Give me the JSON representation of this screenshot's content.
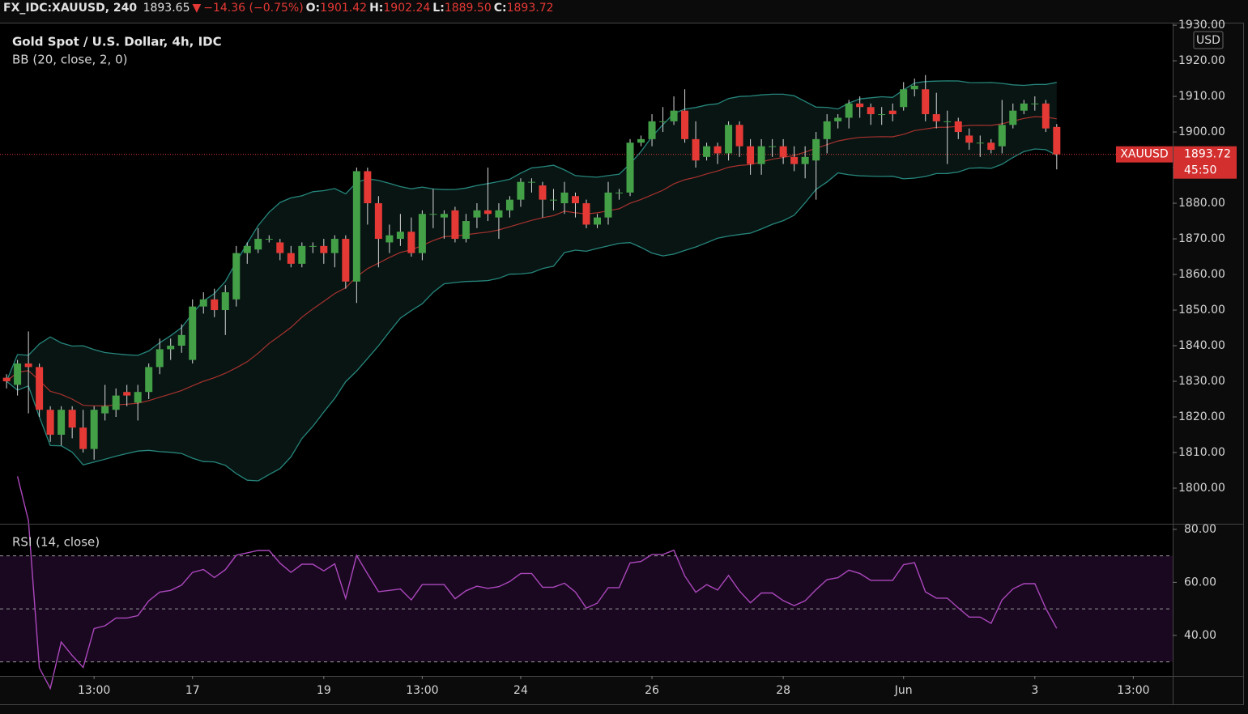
{
  "header": {
    "symbol": "FX_IDC:XAUUSD, 240",
    "last": "1893.65",
    "arrow": "▼",
    "change": "−14.36 (−0.75%)",
    "ohlc": [
      {
        "key": "O:",
        "value": "1901.42"
      },
      {
        "key": "H:",
        "value": "1902.24"
      },
      {
        "key": "L:",
        "value": "1889.50"
      },
      {
        "key": "C:",
        "value": "1893.72"
      }
    ]
  },
  "chart_data": [
    {
      "type": "candlestick",
      "title": "Gold Spot / U.S. Dollar, 4h, IDC",
      "indicator": "BB (20, close, 2, 0)",
      "bb_period": 20,
      "bb_mult": 2,
      "currency": "USD",
      "symbol": "XAUUSD",
      "countdown": "45:50",
      "up_color": "#43a047",
      "down_color": "#e53935",
      "band_color": "#26867c",
      "basis_color": "#a8322e",
      "ylim": [
        1790,
        1930.7
      ],
      "xlim": [
        -0.6,
        106.6
      ],
      "yticks": [
        {
          "value": 1800,
          "label": "1800.00"
        },
        {
          "value": 1810,
          "label": "1810.00"
        },
        {
          "value": 1820,
          "label": "1820.00"
        },
        {
          "value": 1830,
          "label": "1830.00"
        },
        {
          "value": 1840,
          "label": "1840.00"
        },
        {
          "value": 1850,
          "label": "1850.00"
        },
        {
          "value": 1860,
          "label": "1860.00"
        },
        {
          "value": 1870,
          "label": "1870.00"
        },
        {
          "value": 1880,
          "label": "1880.00"
        },
        {
          "value": 1890,
          "label": "1890.00"
        },
        {
          "value": 1900,
          "label": "1900.00"
        },
        {
          "value": 1910,
          "label": "1910.00"
        },
        {
          "value": 1920,
          "label": "1920.00"
        },
        {
          "value": 1930,
          "label": "1930.00"
        }
      ],
      "xticks": [
        {
          "value": 8,
          "label": "13:00"
        },
        {
          "value": 17,
          "label": "17"
        },
        {
          "value": 29,
          "label": "19"
        },
        {
          "value": 38,
          "label": "13:00"
        },
        {
          "value": 47,
          "label": "24"
        },
        {
          "value": 59,
          "label": "26"
        },
        {
          "value": 71,
          "label": "28"
        },
        {
          "value": 82,
          "label": "Jun"
        },
        {
          "value": 94,
          "label": "3"
        },
        {
          "value": 103,
          "label": "13:00"
        }
      ],
      "open": [
        1831,
        1829,
        1835,
        1834,
        1822,
        1815,
        1822,
        1817,
        1811,
        1821,
        1822,
        1827,
        1824,
        1827,
        1834,
        1839,
        1840,
        1836,
        1851,
        1853,
        1850,
        1853,
        1866,
        1867,
        1870,
        1869,
        1866,
        1863,
        1868,
        1868,
        1866,
        1870,
        1858,
        1889,
        1880,
        1869,
        1870,
        1872,
        1866,
        1877,
        1876,
        1878,
        1870,
        1876,
        1878,
        1876,
        1878,
        1881,
        1886,
        1885,
        1881,
        1880,
        1882,
        1880,
        1874,
        1876,
        1883,
        1883,
        1897,
        1898,
        1903,
        1903,
        1906,
        1898,
        1893,
        1896,
        1894,
        1902,
        1896,
        1891,
        1896,
        1896,
        1893,
        1891,
        1892,
        1898,
        1903,
        1904,
        1908,
        1907,
        1905,
        1906,
        1907,
        1912,
        1912,
        1905,
        1903,
        1903,
        1899,
        1897,
        1897,
        1896,
        1902,
        1906,
        1908,
        1908,
        1901.42
      ],
      "high": [
        1832,
        1836,
        1844,
        1835,
        1823,
        1823,
        1823,
        1822,
        1823,
        1829,
        1828,
        1829,
        1829,
        1835,
        1842,
        1842,
        1846,
        1853,
        1855,
        1856,
        1857,
        1868,
        1869,
        1873,
        1871,
        1870,
        1868,
        1869,
        1869,
        1870,
        1871,
        1871,
        1890,
        1890,
        1882,
        1874,
        1877,
        1876,
        1878,
        1884,
        1878,
        1879,
        1877,
        1880,
        1890,
        1880,
        1882,
        1887,
        1887,
        1886,
        1884,
        1886,
        1883,
        1881,
        1877,
        1886,
        1884,
        1898,
        1899,
        1905,
        1907,
        1910,
        1912,
        1903,
        1897,
        1897,
        1903,
        1903,
        1898,
        1898,
        1898,
        1898,
        1896,
        1896,
        1900,
        1905,
        1905,
        1909,
        1910,
        1908,
        1907,
        1908,
        1914,
        1915,
        1916,
        1911,
        1906,
        1904,
        1901,
        1899,
        1898,
        1909,
        1908,
        1909,
        1910,
        1909,
        1902.24
      ],
      "low": [
        1828,
        1826,
        1821,
        1820,
        1813,
        1812,
        1814,
        1810,
        1808,
        1819,
        1820,
        1823,
        1819,
        1825,
        1832,
        1836,
        1838,
        1835,
        1849,
        1848,
        1843,
        1851,
        1863,
        1866,
        1869,
        1864,
        1862,
        1862,
        1866,
        1863,
        1862,
        1856,
        1852,
        1874,
        1862,
        1866,
        1868,
        1865,
        1864,
        1873,
        1870,
        1869,
        1869,
        1873,
        1875,
        1870,
        1876,
        1879,
        1883,
        1876,
        1878,
        1877,
        1876,
        1873,
        1873,
        1874,
        1881,
        1882,
        1896,
        1896,
        1900,
        1902,
        1897,
        1890,
        1892,
        1891,
        1892,
        1893,
        1888,
        1888,
        1893,
        1891,
        1889,
        1887,
        1881,
        1894,
        1901,
        1901,
        1904,
        1902,
        1902,
        1903,
        1906,
        1910,
        1903,
        1901,
        1891,
        1898,
        1895,
        1893,
        1894,
        1894,
        1901,
        1905,
        1906,
        1900,
        1889.5
      ],
      "close": [
        1830,
        1835,
        1834,
        1822,
        1815,
        1822,
        1817,
        1811,
        1822,
        1823,
        1826,
        1826,
        1827,
        1834,
        1839,
        1840,
        1843,
        1851,
        1853,
        1850,
        1855,
        1866,
        1868,
        1870,
        1870,
        1866,
        1863,
        1868,
        1868,
        1866,
        1870,
        1858,
        1889,
        1880,
        1870,
        1871,
        1872,
        1866,
        1877,
        1877,
        1877,
        1870,
        1875,
        1878,
        1877,
        1878,
        1881,
        1886,
        1886,
        1881,
        1881,
        1883,
        1880,
        1874,
        1876,
        1883,
        1883,
        1897,
        1898,
        1903,
        1903,
        1906,
        1898,
        1892,
        1896,
        1894,
        1902,
        1896,
        1891,
        1896,
        1896,
        1893,
        1891,
        1893,
        1898,
        1903,
        1904,
        1908,
        1907,
        1905,
        1905,
        1905,
        1912,
        1913,
        1905,
        1903,
        1903,
        1900,
        1897,
        1897,
        1895,
        1902,
        1906,
        1908,
        1908,
        1901,
        1893.72
      ]
    },
    {
      "type": "rsi",
      "title": "RSI (14, close)",
      "period": 14,
      "color": "#ab47bc",
      "ylim": [
        24.7,
        81.8
      ],
      "yticks": [
        {
          "value": 80,
          "label": "80.00"
        },
        {
          "value": 60,
          "label": "60.00"
        },
        {
          "value": 40,
          "label": "40.00"
        }
      ],
      "levels": [
        70,
        50,
        30
      ]
    }
  ]
}
